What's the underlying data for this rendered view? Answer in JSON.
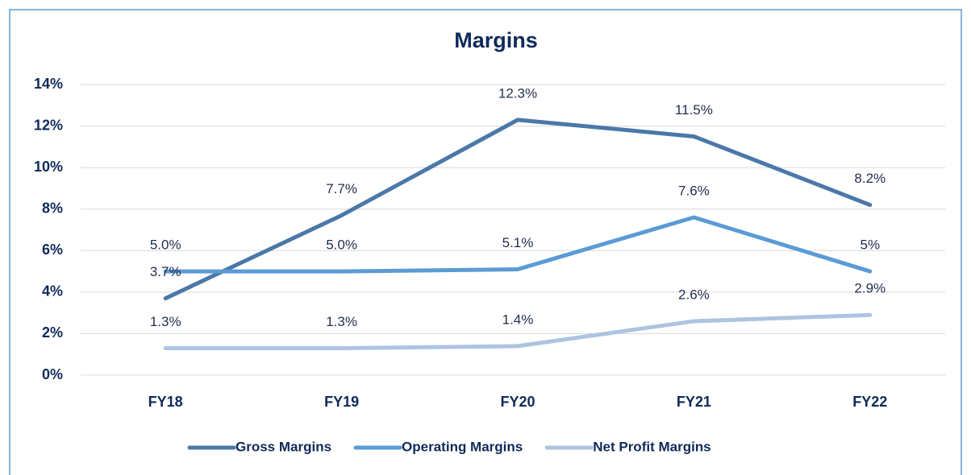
{
  "chart_data": {
    "type": "line",
    "title": "Margins",
    "categories": [
      "FY18",
      "FY19",
      "FY20",
      "FY21",
      "FY22"
    ],
    "series": [
      {
        "name": "Gross Margins",
        "color": "#4a78a8",
        "values": [
          3.7,
          7.7,
          12.3,
          11.5,
          8.2
        ],
        "value_labels": [
          "3.7%",
          "7.7%",
          "12.3%",
          "11.5%",
          "8.2%"
        ]
      },
      {
        "name": "Operating Margins",
        "color": "#5b9bd5",
        "values": [
          5.0,
          5.0,
          5.1,
          7.6,
          5
        ],
        "value_labels": [
          "5.0%",
          "5.0%",
          "5.1%",
          "7.6%",
          "5%"
        ]
      },
      {
        "name": "Net Profit Margins",
        "color": "#adc4e0",
        "values": [
          1.3,
          1.3,
          1.4,
          2.6,
          2.9
        ],
        "value_labels": [
          "1.3%",
          "1.3%",
          "1.4%",
          "2.6%",
          "2.9%"
        ]
      }
    ],
    "ylim": [
      0,
      14
    ],
    "yticks": [
      {
        "value": 0,
        "label": "0%"
      },
      {
        "value": 2,
        "label": "2%"
      },
      {
        "value": 4,
        "label": "4%"
      },
      {
        "value": 6,
        "label": "6%"
      },
      {
        "value": 8,
        "label": "8%"
      },
      {
        "value": 10,
        "label": "10%"
      },
      {
        "value": 12,
        "label": "12%"
      },
      {
        "value": 14,
        "label": "14%"
      }
    ],
    "grid": true,
    "legend": "bottom"
  }
}
